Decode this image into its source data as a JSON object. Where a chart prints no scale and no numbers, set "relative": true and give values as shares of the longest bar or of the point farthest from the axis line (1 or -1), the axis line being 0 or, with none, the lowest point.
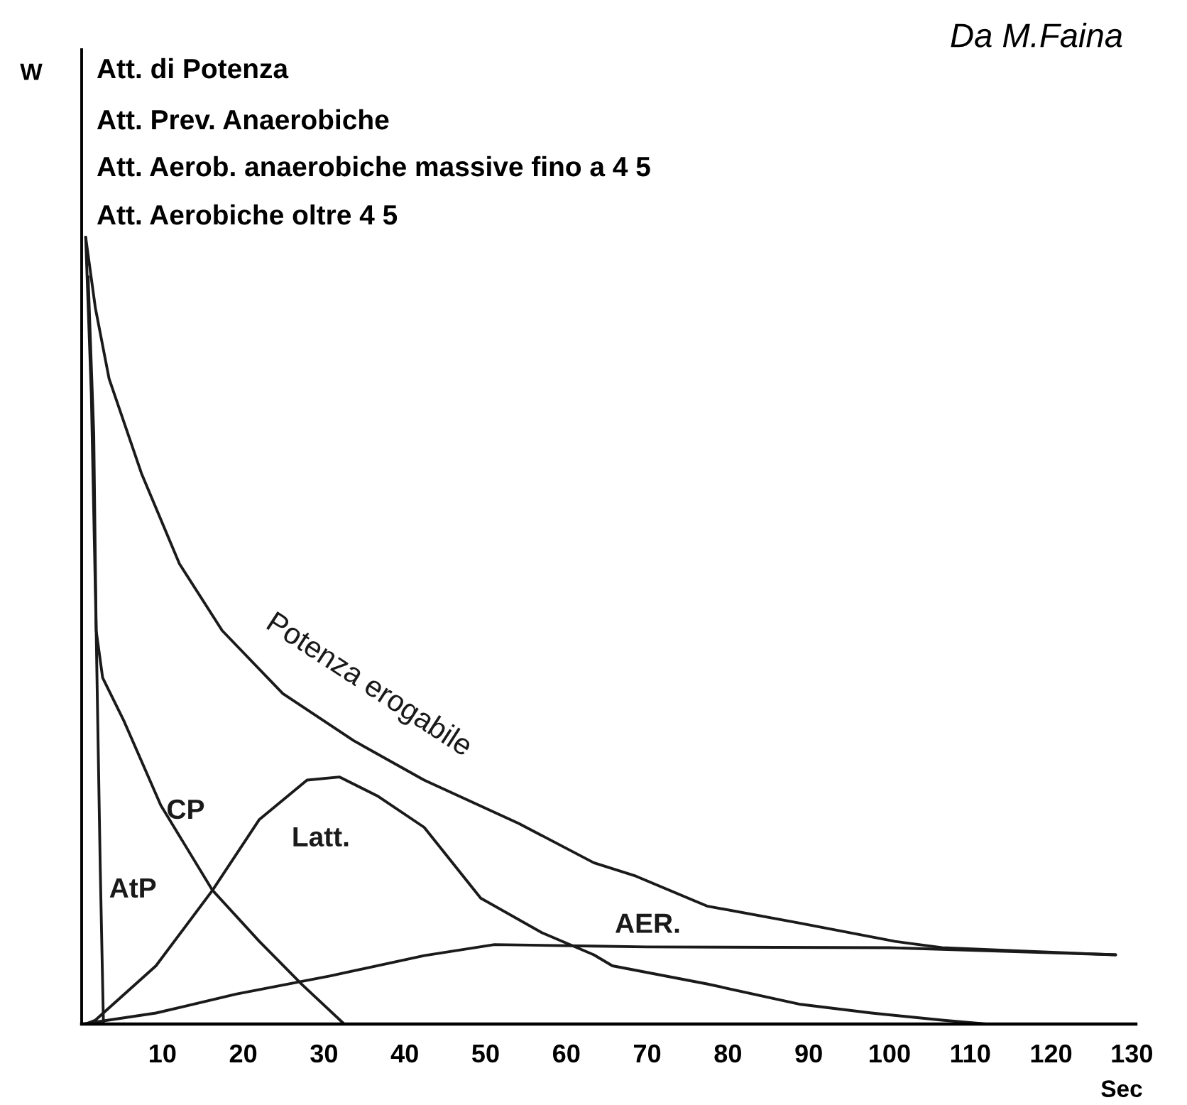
{
  "chart_data": {
    "type": "line",
    "relative": true,
    "xlabel": "Sec",
    "xlim": [
      0,
      130.5
    ],
    "xticks": [
      10,
      20,
      30,
      40,
      50,
      60,
      70,
      80,
      90,
      100,
      110,
      120,
      130
    ],
    "grid": false,
    "legend": false,
    "marker": "none",
    "line_style": "solid",
    "annotations": [
      "W",
      "Att. di Potenza",
      "Att. Prev. Anaerobiche",
      "Att. Aerob. anaerobiche massive fino a 4 5",
      "Att. Aerobiche oltre 4 5",
      "Da M.Faina"
    ],
    "series": [
      {
        "name": "Potenza erogabile",
        "color": "#1a1a1a",
        "x": [
          0.5,
          1.7,
          3.4,
          7.4,
          12.1,
          17.4,
          24.9,
          33.7,
          42.4,
          54.1,
          63.4,
          68.6,
          77.4,
          89,
          100.7,
          106.5,
          118,
          128
        ],
        "values": [
          1.0,
          0.91,
          0.82,
          0.7,
          0.585,
          0.5,
          0.42,
          0.36,
          0.31,
          0.255,
          0.205,
          0.188,
          0.15,
          0.128,
          0.105,
          0.097,
          0.092,
          0.088
        ]
      },
      {
        "name": "AtP",
        "color": "#1a1a1a",
        "x": [
          0.5,
          1.2,
          1.8,
          2.3,
          2.7
        ],
        "values": [
          1.0,
          0.8,
          0.5,
          0.2,
          0.0
        ]
      },
      {
        "name": "CP",
        "color": "#1a1a1a",
        "x": [
          0.8,
          1.5,
          1.8,
          2.6,
          5.2,
          9.8,
          16.2,
          22,
          27.3,
          32.5
        ],
        "values": [
          0.95,
          0.75,
          0.5,
          0.44,
          0.386,
          0.278,
          0.17,
          0.105,
          0.05,
          0.0
        ]
      },
      {
        "name": "Latt.",
        "color": "#1a1a1a",
        "x": [
          0.5,
          1.7,
          9.2,
          16.2,
          22,
          27.9,
          31.9,
          36.6,
          42.4,
          49.4,
          57,
          63.4,
          65.7,
          77.4,
          89,
          97.8,
          106.5,
          112
        ],
        "values": [
          0.0,
          0.005,
          0.074,
          0.17,
          0.26,
          0.31,
          0.314,
          0.29,
          0.25,
          0.16,
          0.116,
          0.088,
          0.074,
          0.051,
          0.025,
          0.014,
          0.005,
          0.0
        ]
      },
      {
        "name": "AER.",
        "color": "#1a1a1a",
        "x": [
          0.1,
          9.2,
          19.1,
          30.7,
          42.4,
          51.1,
          63.4,
          70,
          100,
          128
        ],
        "values": [
          0.0,
          0.014,
          0.038,
          0.061,
          0.087,
          0.101,
          0.099,
          0.098,
          0.097,
          0.088
        ]
      }
    ]
  }
}
